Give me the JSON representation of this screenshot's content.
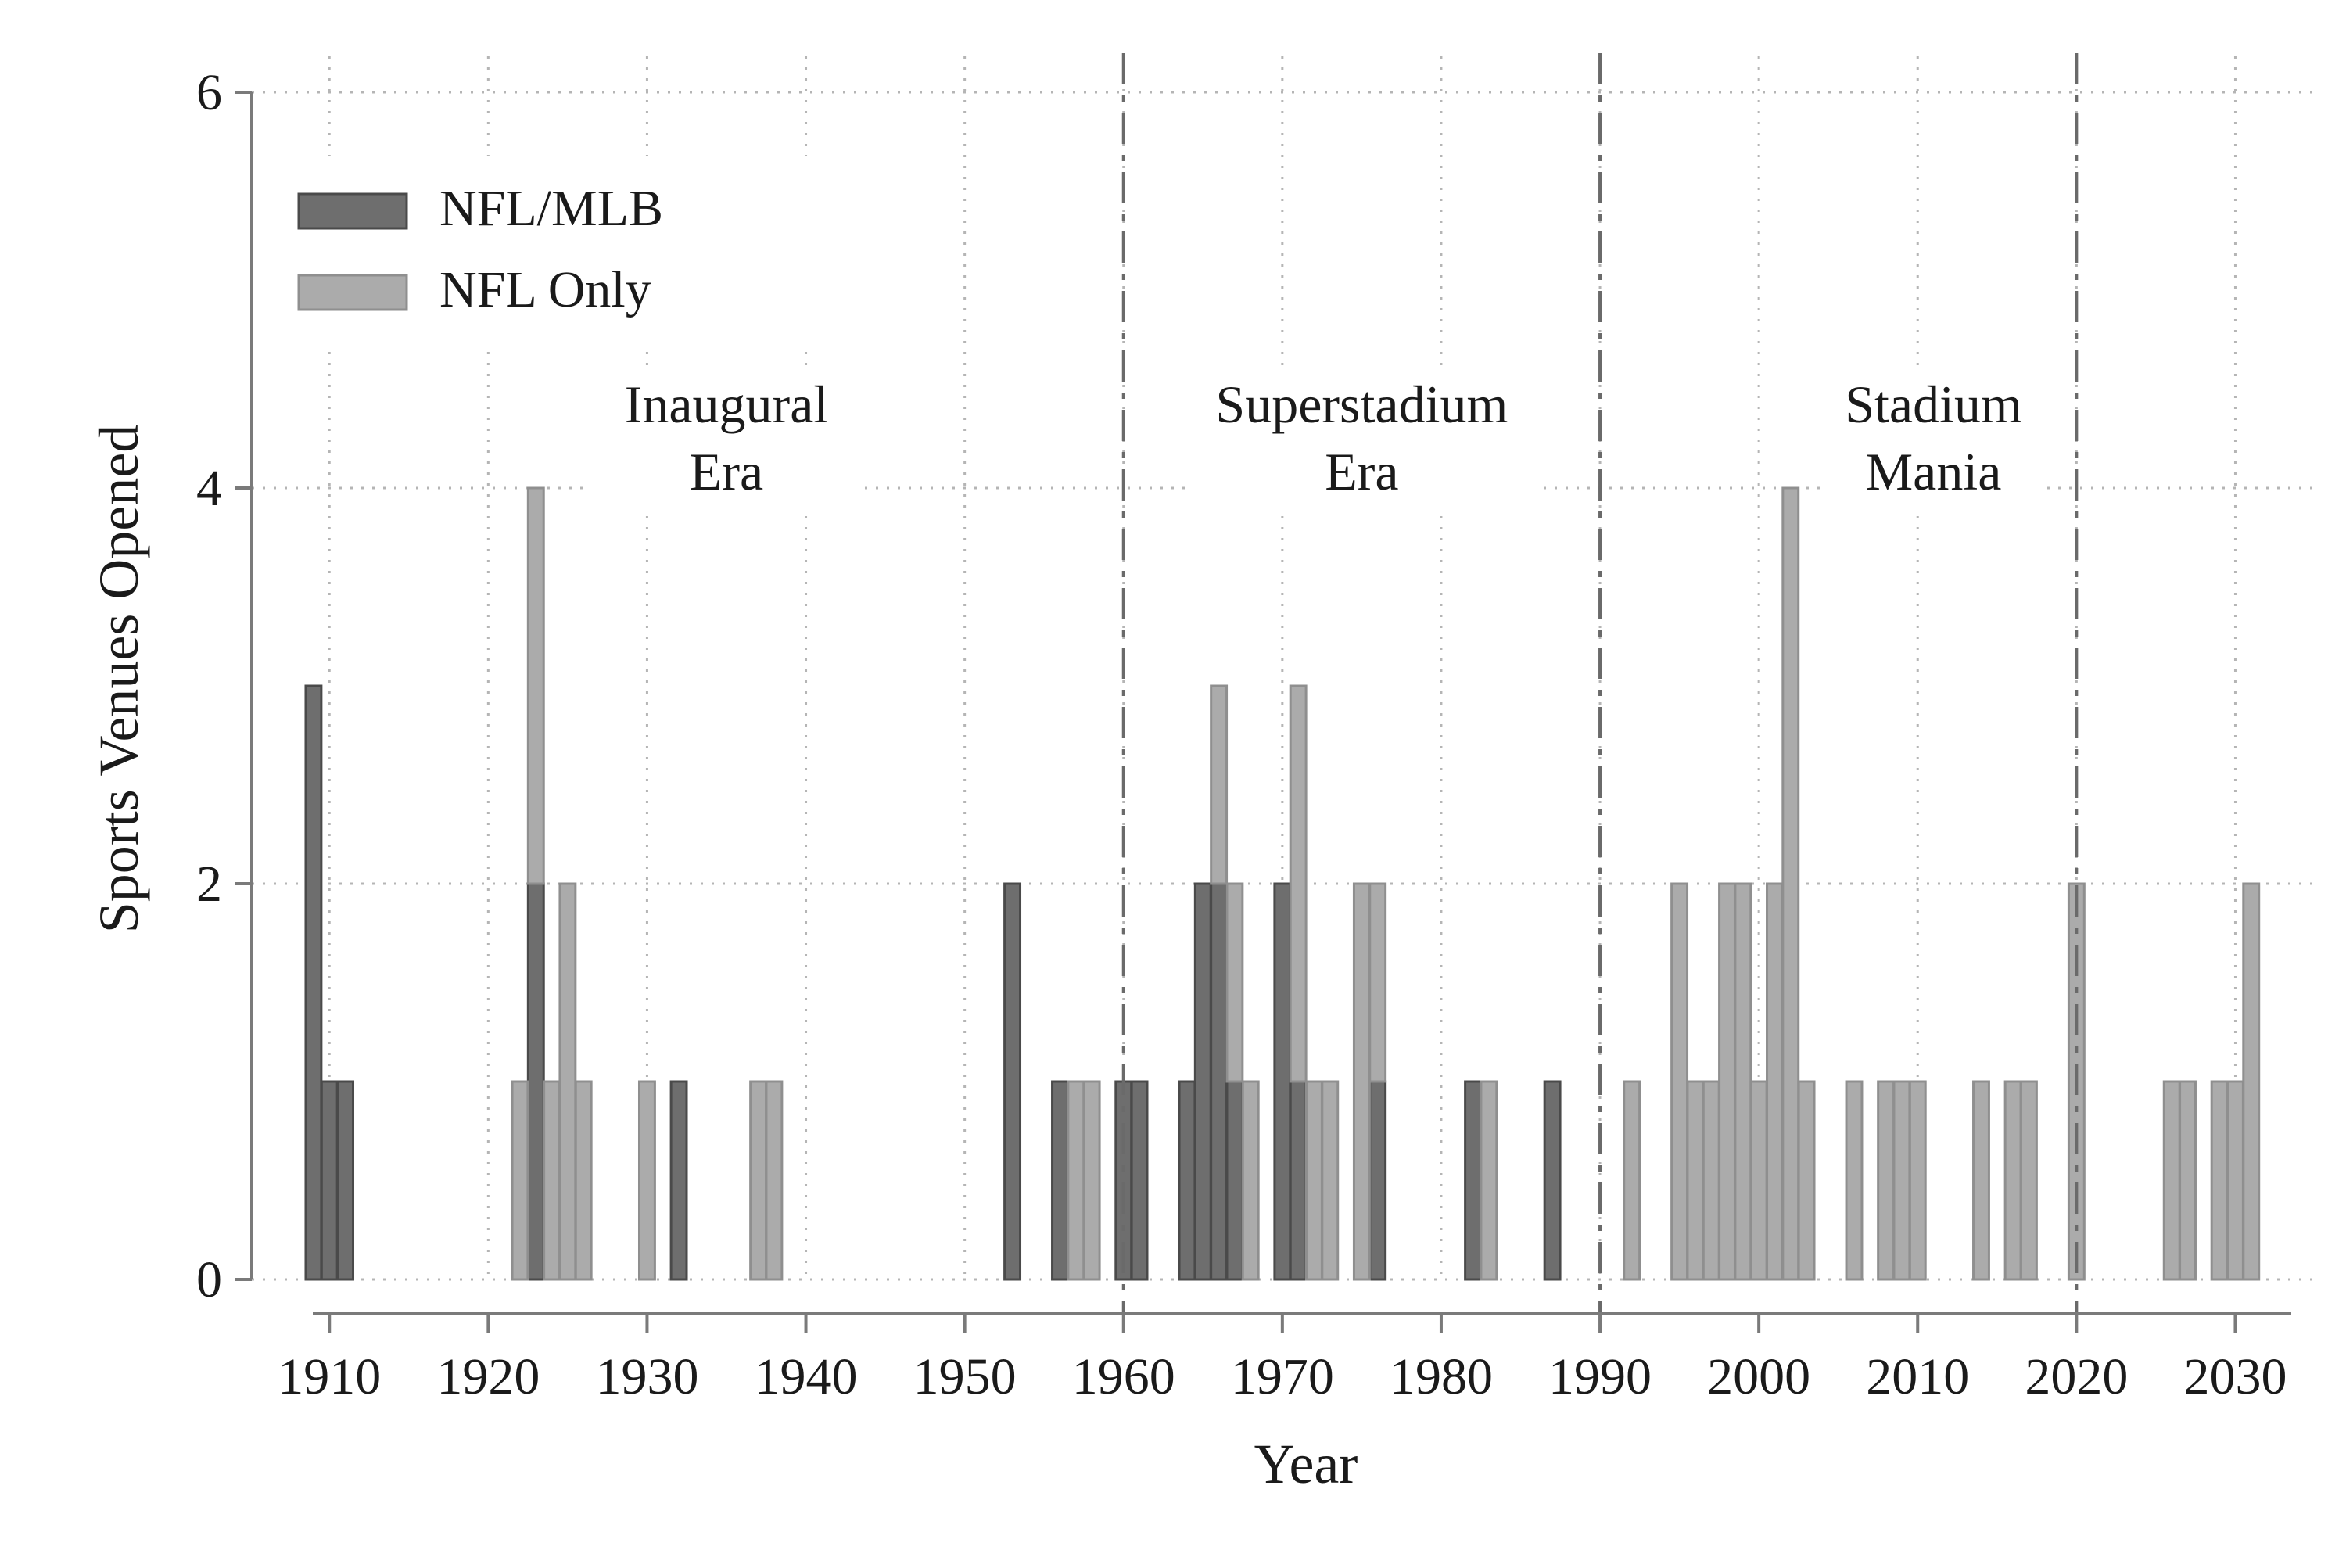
{
  "chart_data": {
    "type": "bar",
    "xlabel": "Year",
    "ylabel": "Sports Venues Opened",
    "xlim": [
      1906,
      2035
    ],
    "ylim": [
      0,
      6
    ],
    "x_ticks": [
      1910,
      1920,
      1930,
      1940,
      1950,
      1960,
      1970,
      1980,
      1990,
      2000,
      2010,
      2020,
      2030
    ],
    "y_ticks": [
      0,
      2,
      4,
      6
    ],
    "grid": true,
    "legend_position": "top-left",
    "stacked": true,
    "series": [
      {
        "name": "NFL/MLB",
        "color": "#6e6e6e",
        "points": [
          {
            "x": 1909,
            "y": 3
          },
          {
            "x": 1910,
            "y": 1
          },
          {
            "x": 1911,
            "y": 1
          },
          {
            "x": 1923,
            "y": 2
          },
          {
            "x": 1932,
            "y": 1
          },
          {
            "x": 1953,
            "y": 2
          },
          {
            "x": 1956,
            "y": 1
          },
          {
            "x": 1960,
            "y": 1
          },
          {
            "x": 1961,
            "y": 1
          },
          {
            "x": 1964,
            "y": 1
          },
          {
            "x": 1965,
            "y": 2
          },
          {
            "x": 1966,
            "y": 2
          },
          {
            "x": 1967,
            "y": 1
          },
          {
            "x": 1970,
            "y": 2
          },
          {
            "x": 1971,
            "y": 1
          },
          {
            "x": 1976,
            "y": 1
          },
          {
            "x": 1982,
            "y": 1
          },
          {
            "x": 1987,
            "y": 1
          }
        ]
      },
      {
        "name": "NFL Only",
        "color": "#ababab",
        "points": [
          {
            "x": 1922,
            "y": 1
          },
          {
            "x": 1923,
            "y": 2
          },
          {
            "x": 1924,
            "y": 1
          },
          {
            "x": 1925,
            "y": 2
          },
          {
            "x": 1926,
            "y": 1
          },
          {
            "x": 1930,
            "y": 1
          },
          {
            "x": 1937,
            "y": 1
          },
          {
            "x": 1938,
            "y": 1
          },
          {
            "x": 1957,
            "y": 1
          },
          {
            "x": 1958,
            "y": 1
          },
          {
            "x": 1966,
            "y": 1
          },
          {
            "x": 1967,
            "y": 1
          },
          {
            "x": 1968,
            "y": 1
          },
          {
            "x": 1971,
            "y": 2
          },
          {
            "x": 1972,
            "y": 1
          },
          {
            "x": 1973,
            "y": 1
          },
          {
            "x": 1975,
            "y": 2
          },
          {
            "x": 1976,
            "y": 1
          },
          {
            "x": 1983,
            "y": 1
          },
          {
            "x": 1992,
            "y": 1
          },
          {
            "x": 1995,
            "y": 2
          },
          {
            "x": 1996,
            "y": 1
          },
          {
            "x": 1997,
            "y": 1
          },
          {
            "x": 1998,
            "y": 2
          },
          {
            "x": 1999,
            "y": 2
          },
          {
            "x": 2000,
            "y": 1
          },
          {
            "x": 2001,
            "y": 2
          },
          {
            "x": 2002,
            "y": 4
          },
          {
            "x": 2003,
            "y": 1
          },
          {
            "x": 2006,
            "y": 1
          },
          {
            "x": 2008,
            "y": 1
          },
          {
            "x": 2009,
            "y": 1
          },
          {
            "x": 2010,
            "y": 1
          },
          {
            "x": 2014,
            "y": 1
          },
          {
            "x": 2016,
            "y": 1
          },
          {
            "x": 2017,
            "y": 1
          },
          {
            "x": 2020,
            "y": 2
          },
          {
            "x": 2026,
            "y": 1
          },
          {
            "x": 2027,
            "y": 1
          },
          {
            "x": 2029,
            "y": 1
          },
          {
            "x": 2030,
            "y": 1
          },
          {
            "x": 2031,
            "y": 2
          }
        ]
      }
    ],
    "era_dividers": [
      1960,
      1990,
      2020
    ],
    "eras": [
      {
        "line1": "Inaugural",
        "line2": "Era",
        "x": 1935
      },
      {
        "line1": "Superstadium",
        "line2": "Era",
        "x": 1975
      },
      {
        "line1": "Stadium",
        "line2": "Mania",
        "x": 2011
      }
    ]
  }
}
